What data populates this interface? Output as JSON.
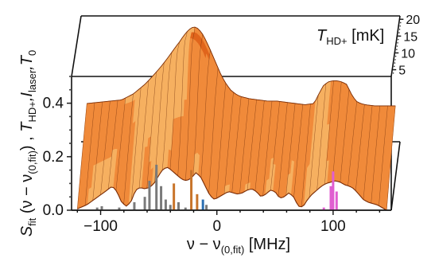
{
  "chart_data": {
    "type": "surface",
    "description_axes": {
      "x": {
        "label_main": "ν − ν",
        "label_sub": "(0,fit)",
        "label_unit": " [MHz]",
        "ticks": [
          -100,
          0,
          100
        ],
        "tick_labels": [
          "−100",
          "0",
          "100"
        ],
        "range": [
          -125,
          150
        ]
      },
      "y": {
        "label_S": "S",
        "label_S_sub": "fit",
        "label_rest": " (ν − ν",
        "label_sub2": "(0,fit)",
        "label_rest2": ") , ",
        "label_T": "T",
        "label_T_sub": "HD+",
        "label_I": ",I",
        "label_I_sub": "laser",
        "label_T0": ",T",
        "label_T0_sub": "0",
        "ticks": [
          0.0,
          0.2,
          0.4
        ],
        "tick_labels": [
          "0.0",
          "0.2",
          "0.4"
        ],
        "range": [
          0,
          0.5
        ]
      },
      "depth": {
        "label_T": "T",
        "label_sub": "HD+",
        "label_unit": " [mK]",
        "ticks": [
          5,
          10,
          15,
          20
        ],
        "tick_labels": [
          "5",
          "10",
          "15",
          "20"
        ]
      }
    },
    "front_profile": {
      "x": [
        -120,
        -112,
        -104,
        -96,
        -90,
        -86,
        -82,
        -78,
        -74,
        -70,
        -66,
        -62,
        -58,
        -54,
        -50,
        -46,
        -42,
        -38,
        -34,
        -30,
        -26,
        -22,
        -18,
        -14,
        -10,
        -6,
        -2,
        2,
        6,
        10,
        14,
        18,
        22,
        26,
        30,
        34,
        38,
        42,
        46,
        50,
        54,
        58,
        62,
        66,
        70,
        74,
        78,
        82,
        86,
        90,
        94,
        98,
        102,
        106,
        110,
        114,
        118,
        122,
        126,
        130,
        134,
        138,
        142,
        146
      ],
      "y": [
        0.005,
        0.02,
        0.045,
        0.07,
        0.09,
        0.07,
        0.03,
        0.015,
        0.03,
        0.075,
        0.085,
        0.08,
        0.085,
        0.1,
        0.13,
        0.155,
        0.16,
        0.145,
        0.13,
        0.115,
        0.11,
        0.12,
        0.14,
        0.125,
        0.09,
        0.055,
        0.04,
        0.05,
        0.06,
        0.07,
        0.065,
        0.06,
        0.065,
        0.075,
        0.08,
        0.07,
        0.05,
        0.06,
        0.075,
        0.07,
        0.045,
        0.05,
        0.065,
        0.05,
        0.015,
        0.012,
        0.04,
        0.06,
        0.075,
        0.09,
        0.1,
        0.105,
        0.11,
        0.105,
        0.095,
        0.09,
        0.08,
        0.06,
        0.04,
        0.03,
        0.025,
        0.02,
        0.01,
        0.0
      ]
    },
    "back_profile": {
      "x": [
        -120,
        -110,
        -100,
        -90,
        -80,
        -70,
        -60,
        -50,
        -44,
        -40,
        -36,
        -32,
        -28,
        -24,
        -20,
        -16,
        -12,
        -8,
        -4,
        0,
        4,
        8,
        12,
        16,
        20,
        28,
        36,
        44,
        52,
        60,
        68,
        76,
        80,
        84,
        88,
        92,
        96,
        100,
        104,
        108,
        112,
        116,
        120,
        128,
        136,
        146
      ],
      "y": [
        0.16,
        0.165,
        0.17,
        0.175,
        0.2,
        0.24,
        0.29,
        0.34,
        0.37,
        0.39,
        0.42,
        0.45,
        0.47,
        0.46,
        0.43,
        0.39,
        0.35,
        0.31,
        0.27,
        0.24,
        0.215,
        0.2,
        0.19,
        0.185,
        0.18,
        0.175,
        0.17,
        0.17,
        0.165,
        0.16,
        0.155,
        0.16,
        0.2,
        0.235,
        0.25,
        0.255,
        0.255,
        0.25,
        0.24,
        0.2,
        0.17,
        0.16,
        0.155,
        0.15,
        0.15,
        0.15
      ]
    },
    "peak": {
      "x": -30,
      "y": 0.5
    },
    "spectral_lines": [
      {
        "x": -103,
        "y": 0.01,
        "color": "#7a7a7a"
      },
      {
        "x": -99,
        "y": 0.015,
        "color": "#7a7a7a"
      },
      {
        "x": -84,
        "y": 0.01,
        "color": "#7a7a7a"
      },
      {
        "x": -71,
        "y": 0.03,
        "color": "#7a7a7a"
      },
      {
        "x": -62,
        "y": 0.05,
        "color": "#7a7a7a"
      },
      {
        "x": -58,
        "y": 0.11,
        "color": "#7a7a7a"
      },
      {
        "x": -52,
        "y": 0.17,
        "color": "#7a7a7a"
      },
      {
        "x": -48,
        "y": 0.09,
        "color": "#7a7a7a"
      },
      {
        "x": -44,
        "y": 0.04,
        "color": "#7a7a7a"
      },
      {
        "x": -40,
        "y": 0.02,
        "color": "#7a7a7a"
      },
      {
        "x": -37,
        "y": 0.1,
        "color": "#c8742a"
      },
      {
        "x": -33,
        "y": 0.03,
        "color": "#7a7a7a"
      },
      {
        "x": -27,
        "y": 0.01,
        "color": "#7a7a7a"
      },
      {
        "x": -22,
        "y": 0.15,
        "color": "#c8742a"
      },
      {
        "x": -17,
        "y": 0.06,
        "color": "#c8742a"
      },
      {
        "x": -12,
        "y": 0.04,
        "color": "#2c6fb2"
      },
      {
        "x": -9,
        "y": 0.02,
        "color": "#7a7a7a"
      },
      {
        "x": 92,
        "y": 0.01,
        "color": "#e05ed0"
      },
      {
        "x": 98,
        "y": 0.09,
        "color": "#e05ed0"
      },
      {
        "x": 100,
        "y": 0.145,
        "color": "#e05ed0"
      },
      {
        "x": 103,
        "y": 0.07,
        "color": "#e05ed0"
      }
    ],
    "colors": {
      "surface_front": "#c24a10",
      "surface_mid": "#e0651c",
      "surface_back": "#f08a3a",
      "highlight": "#f6b060",
      "mesh": "#6b2a08"
    },
    "grid": false
  }
}
